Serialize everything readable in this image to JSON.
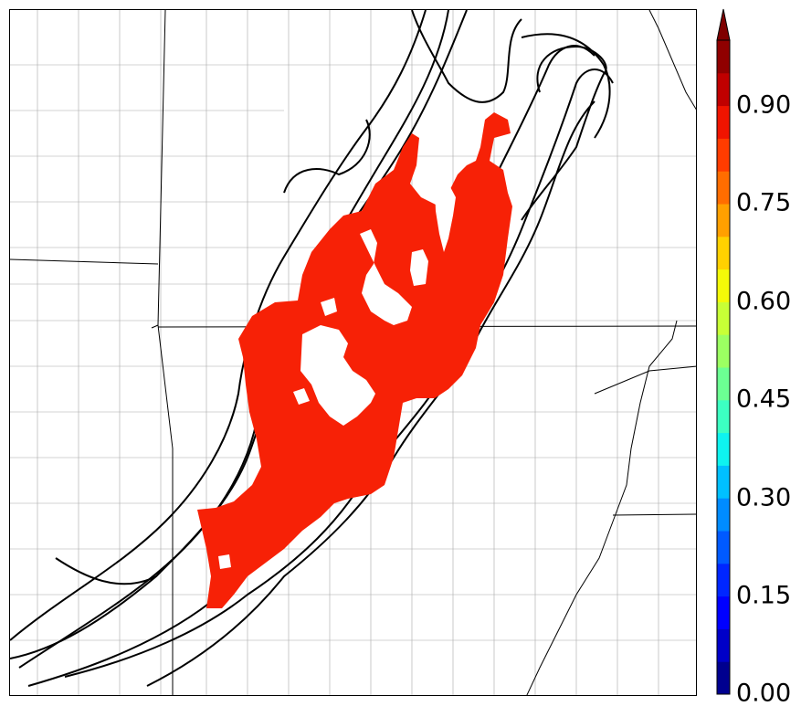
{
  "map": {
    "type": "probability-swath",
    "fill_color": "#f72106",
    "contour_color": "#000000",
    "county_border_color": "#9a9a9a",
    "state_border_color": "#000000"
  },
  "colorbar": {
    "ticks": [
      "0.00",
      "0.15",
      "0.30",
      "0.45",
      "0.60",
      "0.75",
      "0.90"
    ],
    "extend": "max",
    "colors": [
      "#00008f",
      "#0000c8",
      "#0000ff",
      "#0026ff",
      "#005aff",
      "#008cff",
      "#00c0ff",
      "#0ef3f0",
      "#3cffc2",
      "#6cff93",
      "#9cff62",
      "#c8ff36",
      "#f4fa08",
      "#ffd100",
      "#ffa000",
      "#ff6d00",
      "#ff3c00",
      "#f01400",
      "#c00000",
      "#900000"
    ],
    "arrow_color": "#7f0000"
  }
}
